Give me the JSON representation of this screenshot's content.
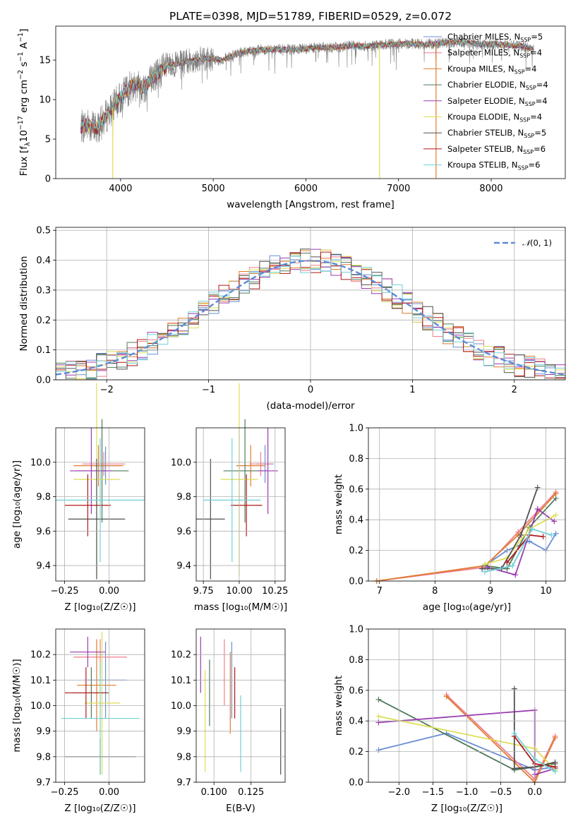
{
  "figure": {
    "title": "PLATE=0398, MJD=51789, FIBERID=0529, z=0.072"
  },
  "colors": {
    "series": [
      "#6a8ed6",
      "#f07d8c",
      "#e07b2e",
      "#4f7a5a",
      "#9a3cb0",
      "#dede55",
      "#505050",
      "#b01818",
      "#70d0d8"
    ],
    "data_spectrum": "#808080",
    "normal_curve": "#5b8bd9"
  },
  "models": [
    {
      "short": "Chabrier MILES",
      "n": "5"
    },
    {
      "short": "Salpeter MILES",
      "n": "4"
    },
    {
      "short": "Kroupa MILES",
      "n": "4"
    },
    {
      "short": "Chabrier ELODIE",
      "n": "4"
    },
    {
      "short": "Salpeter ELODIE",
      "n": "4"
    },
    {
      "short": "Kroupa ELODIE",
      "n": "4"
    },
    {
      "short": "Chabrier STELIB",
      "n": "5"
    },
    {
      "short": "Salpeter STELIB",
      "n": "6"
    },
    {
      "short": "Kroupa STELIB",
      "n": "6"
    }
  ],
  "chart_data": [
    {
      "id": "spectrum",
      "type": "line",
      "title": "PLATE=0398, MJD=51789, FIBERID=0529, z=0.072",
      "xlabel": "wavelength [Angstrom, rest frame]",
      "ylabel_parts": {
        "a": "Flux [f",
        "sub": "λ",
        "b": "10",
        "sup1": "−17",
        "c": " erg cm",
        "sup2": "−2",
        "d": " s",
        "sup3": "−1",
        "e": " A",
        "sup4": "−1",
        "f": "]"
      },
      "xlim": [
        3300,
        8800
      ],
      "ylim": [
        0,
        19.3
      ],
      "xticks": [
        "4000",
        "5000",
        "6000",
        "7000",
        "8000"
      ],
      "yticks": [
        "0",
        "5",
        "10",
        "15"
      ],
      "legend": "top-right",
      "continuum_anchors": [
        [
          3570,
          6.5
        ],
        [
          3650,
          6.8
        ],
        [
          3750,
          6.4
        ],
        [
          3850,
          8.0
        ],
        [
          3950,
          9.5
        ],
        [
          4050,
          11.0
        ],
        [
          4150,
          12.0
        ],
        [
          4250,
          11.5
        ],
        [
          4350,
          12.8
        ],
        [
          4500,
          14.2
        ],
        [
          4700,
          14.8
        ],
        [
          4900,
          15.2
        ],
        [
          5100,
          15.0
        ],
        [
          5300,
          16.0
        ],
        [
          5500,
          16.3
        ],
        [
          5700,
          16.4
        ],
        [
          5900,
          16.3
        ],
        [
          6100,
          16.6
        ],
        [
          6300,
          16.6
        ],
        [
          6500,
          16.8
        ],
        [
          6700,
          16.8
        ],
        [
          6900,
          17.0
        ],
        [
          7100,
          17.1
        ],
        [
          7300,
          17.0
        ],
        [
          7500,
          17.2
        ],
        [
          7700,
          17.3
        ],
        [
          7900,
          17.0
        ],
        [
          8100,
          17.0
        ],
        [
          8300,
          16.8
        ],
        [
          8460,
          16.4
        ]
      ],
      "model_spikes": [
        {
          "series": 5,
          "x": 3915,
          "to": 0
        },
        {
          "series": 5,
          "x": 6795,
          "to": 0
        },
        {
          "series": 2,
          "x": 7405,
          "to": 0
        }
      ]
    },
    {
      "id": "residuals",
      "type": "bar",
      "xlabel": "(data-model)/error",
      "ylabel": "Normed distribution",
      "xlim": [
        -2.5,
        2.5
      ],
      "ylim": [
        0,
        0.51
      ],
      "xticks": [
        "−2",
        "−1",
        "0",
        "1",
        "2"
      ],
      "yticks": [
        "0.0",
        "0.1",
        "0.2",
        "0.3",
        "0.4",
        "0.5"
      ],
      "legend": "top-right",
      "legend_text": {
        "pre": "𝒩",
        "post": "(0, 1)"
      },
      "bins": {
        "start": -2.5,
        "width": 0.1,
        "count": 50
      }
    },
    {
      "id": "age-vs-Z",
      "type": "scatter",
      "xlabel": "Z [log₁₀(Z/Z☉)]",
      "ylabel": "age  [log₁₀(age/yr)]",
      "xlim": [
        -0.3,
        0.2
      ],
      "ylim": [
        9.31,
        10.2
      ],
      "xticks": [
        {
          "v": -0.25,
          "t": "−0.25"
        },
        {
          "v": 0.0,
          "t": "0.00"
        }
      ],
      "yticks": [
        {
          "v": 9.4,
          "t": "9.4"
        },
        {
          "v": 9.6,
          "t": "9.6"
        },
        {
          "v": 9.8,
          "t": "9.8"
        },
        {
          "v": 10.0,
          "t": "10.0"
        }
      ],
      "points": [
        {
          "s": 0,
          "x": -0.02,
          "y": 9.98,
          "xe": 0.08,
          "ye": 0.11
        },
        {
          "s": 1,
          "x": -0.03,
          "y": 9.99,
          "xe": 0.12,
          "ye": 0.07
        },
        {
          "s": 2,
          "x": -0.06,
          "y": 9.98,
          "xe": 0.14,
          "ye": 0.12
        },
        {
          "s": 3,
          "x": -0.04,
          "y": 9.95,
          "xe": 0.15,
          "ye": 0.3
        },
        {
          "s": 4,
          "x": -0.1,
          "y": 9.95,
          "xe": 0.12,
          "ye": 0.25
        },
        {
          "s": 5,
          "x": -0.07,
          "y": 9.9,
          "xe": 0.13,
          "ye": 0.56
        },
        {
          "s": 6,
          "x": -0.07,
          "y": 9.67,
          "xe": 0.16,
          "ye": 0.35
        },
        {
          "s": 7,
          "x": -0.12,
          "y": 9.75,
          "xe": 0.13,
          "ye": 0.18
        },
        {
          "s": 8,
          "x": -0.05,
          "y": 9.78,
          "xe": 0.25,
          "ye": 0.36
        }
      ]
    },
    {
      "id": "age-vs-mass",
      "type": "scatter",
      "xlabel": "mass [log₁₀(M/M☉)]",
      "ylabel": "",
      "xlim": [
        9.7,
        10.32
      ],
      "ylim": [
        9.31,
        10.2
      ],
      "xticks": [
        {
          "v": 9.75,
          "t": "9.75"
        },
        {
          "v": 10.0,
          "t": "10.00"
        },
        {
          "v": 10.25,
          "t": "10.25"
        }
      ],
      "yticks": [
        {
          "v": 9.4,
          "t": "9.4"
        },
        {
          "v": 9.6,
          "t": "9.6"
        },
        {
          "v": 9.8,
          "t": "9.8"
        },
        {
          "v": 10.0,
          "t": "10.0"
        }
      ],
      "points": [
        {
          "s": 0,
          "x": 10.18,
          "y": 9.99,
          "xe": 0.06,
          "ye": 0.11
        },
        {
          "s": 1,
          "x": 10.15,
          "y": 9.99,
          "xe": 0.08,
          "ye": 0.07
        },
        {
          "s": 2,
          "x": 10.08,
          "y": 9.98,
          "xe": 0.1,
          "ye": 0.12
        },
        {
          "s": 3,
          "x": 10.04,
          "y": 9.95,
          "xe": 0.15,
          "ye": 0.3
        },
        {
          "s": 4,
          "x": 10.2,
          "y": 9.95,
          "xe": 0.07,
          "ye": 0.25
        },
        {
          "s": 5,
          "x": 10.0,
          "y": 9.9,
          "xe": 0.13,
          "ye": 0.56
        },
        {
          "s": 6,
          "x": 9.8,
          "y": 9.67,
          "xe": 0.1,
          "ye": 0.35
        },
        {
          "s": 7,
          "x": 10.05,
          "y": 9.75,
          "xe": 0.11,
          "ye": 0.18
        },
        {
          "s": 8,
          "x": 9.95,
          "y": 9.78,
          "xe": 0.2,
          "ye": 0.36
        }
      ]
    },
    {
      "id": "massweight-vs-age",
      "type": "line",
      "xlabel": "age  [log₁₀(age/yr)]",
      "ylabel": "mass weight",
      "xlim": [
        6.8,
        10.35
      ],
      "ylim": [
        0,
        1
      ],
      "xticks": [
        {
          "v": 7,
          "t": "7"
        },
        {
          "v": 8,
          "t": "8"
        },
        {
          "v": 9,
          "t": "9"
        },
        {
          "v": 10,
          "t": "10"
        }
      ],
      "yticks": [
        {
          "v": 0,
          "t": "0.0"
        },
        {
          "v": 0.2,
          "t": "0.2"
        },
        {
          "v": 0.4,
          "t": "0.4"
        },
        {
          "v": 0.6,
          "t": "0.6"
        },
        {
          "v": 0.8,
          "t": "0.8"
        },
        {
          "v": 1,
          "t": "1.0"
        }
      ],
      "series": [
        {
          "s": 0,
          "pts": [
            [
              8.9,
              0.1
            ],
            [
              9.3,
              0.2
            ],
            [
              9.7,
              0.26
            ],
            [
              10.0,
              0.2
            ],
            [
              10.18,
              0.31
            ]
          ]
        },
        {
          "s": 1,
          "pts": [
            [
              6.95,
              0.0
            ],
            [
              8.9,
              0.09
            ],
            [
              9.5,
              0.32
            ],
            [
              10.18,
              0.58
            ]
          ]
        },
        {
          "s": 2,
          "pts": [
            [
              6.95,
              0.0
            ],
            [
              8.9,
              0.1
            ],
            [
              9.5,
              0.3
            ],
            [
              10.18,
              0.57
            ]
          ]
        },
        {
          "s": 3,
          "pts": [
            [
              8.9,
              0.1
            ],
            [
              9.3,
              0.08
            ],
            [
              9.7,
              0.35
            ],
            [
              10.18,
              0.54
            ]
          ]
        },
        {
          "s": 4,
          "pts": [
            [
              8.95,
              0.09
            ],
            [
              9.45,
              0.04
            ],
            [
              9.85,
              0.47
            ],
            [
              10.15,
              0.39
            ]
          ]
        },
        {
          "s": 5,
          "pts": [
            [
              8.9,
              0.11
            ],
            [
              9.3,
              0.15
            ],
            [
              9.7,
              0.34
            ],
            [
              10.18,
              0.43
            ]
          ]
        },
        {
          "s": 6,
          "pts": [
            [
              8.85,
              0.08
            ],
            [
              9.2,
              0.08
            ],
            [
              9.55,
              0.3
            ],
            [
              9.85,
              0.61
            ]
          ]
        },
        {
          "s": 7,
          "pts": [
            [
              9.3,
              0.12
            ],
            [
              9.7,
              0.3
            ],
            [
              9.95,
              0.29
            ]
          ]
        },
        {
          "s": 8,
          "pts": [
            [
              8.9,
              0.06
            ],
            [
              9.4,
              0.1
            ],
            [
              9.75,
              0.34
            ],
            [
              10.1,
              0.3
            ]
          ]
        }
      ]
    },
    {
      "id": "mass-vs-Z",
      "type": "scatter",
      "xlabel": "Z [log₁₀(Z/Z☉)]",
      "ylabel": "mass [log₁₀(M/M☉)]",
      "xlim": [
        -0.3,
        0.2
      ],
      "ylim": [
        9.7,
        10.3
      ],
      "xticks": [
        {
          "v": -0.25,
          "t": "−0.25"
        },
        {
          "v": 0.0,
          "t": "0.00"
        }
      ],
      "yticks": [
        {
          "v": 9.7,
          "t": "9.7"
        },
        {
          "v": 9.8,
          "t": "9.8"
        },
        {
          "v": 9.9,
          "t": "9.9"
        },
        {
          "v": 10.0,
          "t": "10.0"
        },
        {
          "v": 10.1,
          "t": "10.1"
        },
        {
          "v": 10.2,
          "t": "10.2"
        }
      ],
      "points": [
        {
          "s": 0,
          "x": -0.02,
          "y": 10.1,
          "xe": 0.12,
          "ye": 0.15
        },
        {
          "s": 1,
          "x": -0.05,
          "y": 10.19,
          "xe": 0.15,
          "ye": 0.07
        },
        {
          "s": 2,
          "x": -0.07,
          "y": 10.08,
          "xe": 0.11,
          "ye": 0.18
        },
        {
          "s": 3,
          "x": -0.1,
          "y": 10.05,
          "xe": 0.1,
          "ye": 0.1
        },
        {
          "s": 4,
          "x": -0.12,
          "y": 10.21,
          "xe": 0.1,
          "ye": 0.06
        },
        {
          "s": 5,
          "x": -0.04,
          "y": 10.01,
          "xe": 0.1,
          "ye": 0.28
        },
        {
          "s": 6,
          "x": -0.05,
          "y": 9.8,
          "xe": 0.2,
          "ye": 0.07
        },
        {
          "s": 7,
          "x": -0.13,
          "y": 10.05,
          "xe": 0.12,
          "ye": 0.1
        },
        {
          "s": 8,
          "x": -0.05,
          "y": 9.95,
          "xe": 0.22,
          "ye": 0.22
        }
      ]
    },
    {
      "id": "mass-vs-EBV",
      "type": "scatter",
      "xlabel": "E(B-V)",
      "ylabel": "",
      "xlim": [
        0.088,
        0.148
      ],
      "ylim": [
        9.7,
        10.3
      ],
      "xticks": [
        {
          "v": 0.1,
          "t": "0.100"
        },
        {
          "v": 0.125,
          "t": "0.125"
        }
      ],
      "yticks": [
        {
          "v": 9.7,
          "t": "9.7"
        },
        {
          "v": 9.8,
          "t": "9.8"
        },
        {
          "v": 9.9,
          "t": "9.9"
        },
        {
          "v": 10.0,
          "t": "10.0"
        },
        {
          "v": 10.1,
          "t": "10.1"
        },
        {
          "v": 10.2,
          "t": "10.2"
        }
      ],
      "points": [
        {
          "s": 0,
          "x": 0.112,
          "y": 10.1,
          "xe": 0,
          "ye": 0.15
        },
        {
          "s": 1,
          "x": 0.107,
          "y": 10.13,
          "xe": 0,
          "ye": 0.13
        },
        {
          "s": 2,
          "x": 0.111,
          "y": 10.05,
          "xe": 0,
          "ye": 0.16
        },
        {
          "s": 3,
          "x": 0.097,
          "y": 10.05,
          "xe": 0,
          "ye": 0.13
        },
        {
          "s": 4,
          "x": 0.091,
          "y": 10.16,
          "xe": 0,
          "ye": 0.11
        },
        {
          "s": 5,
          "x": 0.094,
          "y": 9.94,
          "xe": 0,
          "ye": 0.2
        },
        {
          "s": 6,
          "x": 0.145,
          "y": 9.86,
          "xe": 0,
          "ye": 0.13
        },
        {
          "s": 7,
          "x": 0.114,
          "y": 10.05,
          "xe": 0,
          "ye": 0.1
        },
        {
          "s": 8,
          "x": 0.118,
          "y": 9.89,
          "xe": 0,
          "ye": 0.15
        }
      ]
    },
    {
      "id": "massweight-vs-Z",
      "type": "line",
      "xlabel": "Z [log₁₀(Z/Z☉)]",
      "ylabel": "mass weight",
      "xlim": [
        -2.45,
        0.45
      ],
      "ylim": [
        0,
        1
      ],
      "xticks": [
        {
          "v": -2,
          "t": "−2.0"
        },
        {
          "v": -1.5,
          "t": "−1.5"
        },
        {
          "v": -1,
          "t": "−1.0"
        },
        {
          "v": -0.5,
          "t": "−0.5"
        },
        {
          "v": 0,
          "t": "0.0"
        }
      ],
      "yticks": [
        {
          "v": 0,
          "t": "0.0"
        },
        {
          "v": 0.2,
          "t": "0.2"
        },
        {
          "v": 0.4,
          "t": "0.4"
        },
        {
          "v": 0.6,
          "t": "0.6"
        },
        {
          "v": 0.8,
          "t": "0.8"
        },
        {
          "v": 1,
          "t": "1.0"
        }
      ],
      "series": [
        {
          "s": 0,
          "pts": [
            [
              -2.3,
              0.21
            ],
            [
              -1.3,
              0.32
            ],
            [
              0.0,
              0.08
            ],
            [
              0.3,
              0.1
            ]
          ]
        },
        {
          "s": 1,
          "pts": [
            [
              -1.3,
              0.57
            ],
            [
              0.0,
              0.02
            ],
            [
              0.3,
              0.3
            ]
          ]
        },
        {
          "s": 2,
          "pts": [
            [
              -1.3,
              0.56
            ],
            [
              0.0,
              0.0
            ],
            [
              0.3,
              0.29
            ]
          ]
        },
        {
          "s": 3,
          "pts": [
            [
              -2.3,
              0.54
            ],
            [
              -0.3,
              0.08
            ],
            [
              0.0,
              0.1
            ],
            [
              0.3,
              0.12
            ]
          ]
        },
        {
          "s": 4,
          "pts": [
            [
              -2.3,
              0.39
            ],
            [
              0.0,
              0.47
            ],
            [
              0.0,
              0.05
            ],
            [
              0.3,
              0.09
            ]
          ]
        },
        {
          "s": 5,
          "pts": [
            [
              -2.3,
              0.43
            ],
            [
              0.0,
              0.22
            ],
            [
              0.3,
              0.08
            ]
          ]
        },
        {
          "s": 6,
          "pts": [
            [
              -0.3,
              0.61
            ],
            [
              -0.3,
              0.09
            ],
            [
              0.0,
              0.1
            ],
            [
              0.3,
              0.13
            ]
          ]
        },
        {
          "s": 7,
          "pts": [
            [
              -0.3,
              0.3
            ],
            [
              0.0,
              0.12
            ],
            [
              0.3,
              0.1
            ]
          ]
        },
        {
          "s": 8,
          "pts": [
            [
              -0.3,
              0.32
            ],
            [
              0.0,
              0.15
            ],
            [
              0.3,
              0.07
            ]
          ]
        }
      ]
    }
  ]
}
